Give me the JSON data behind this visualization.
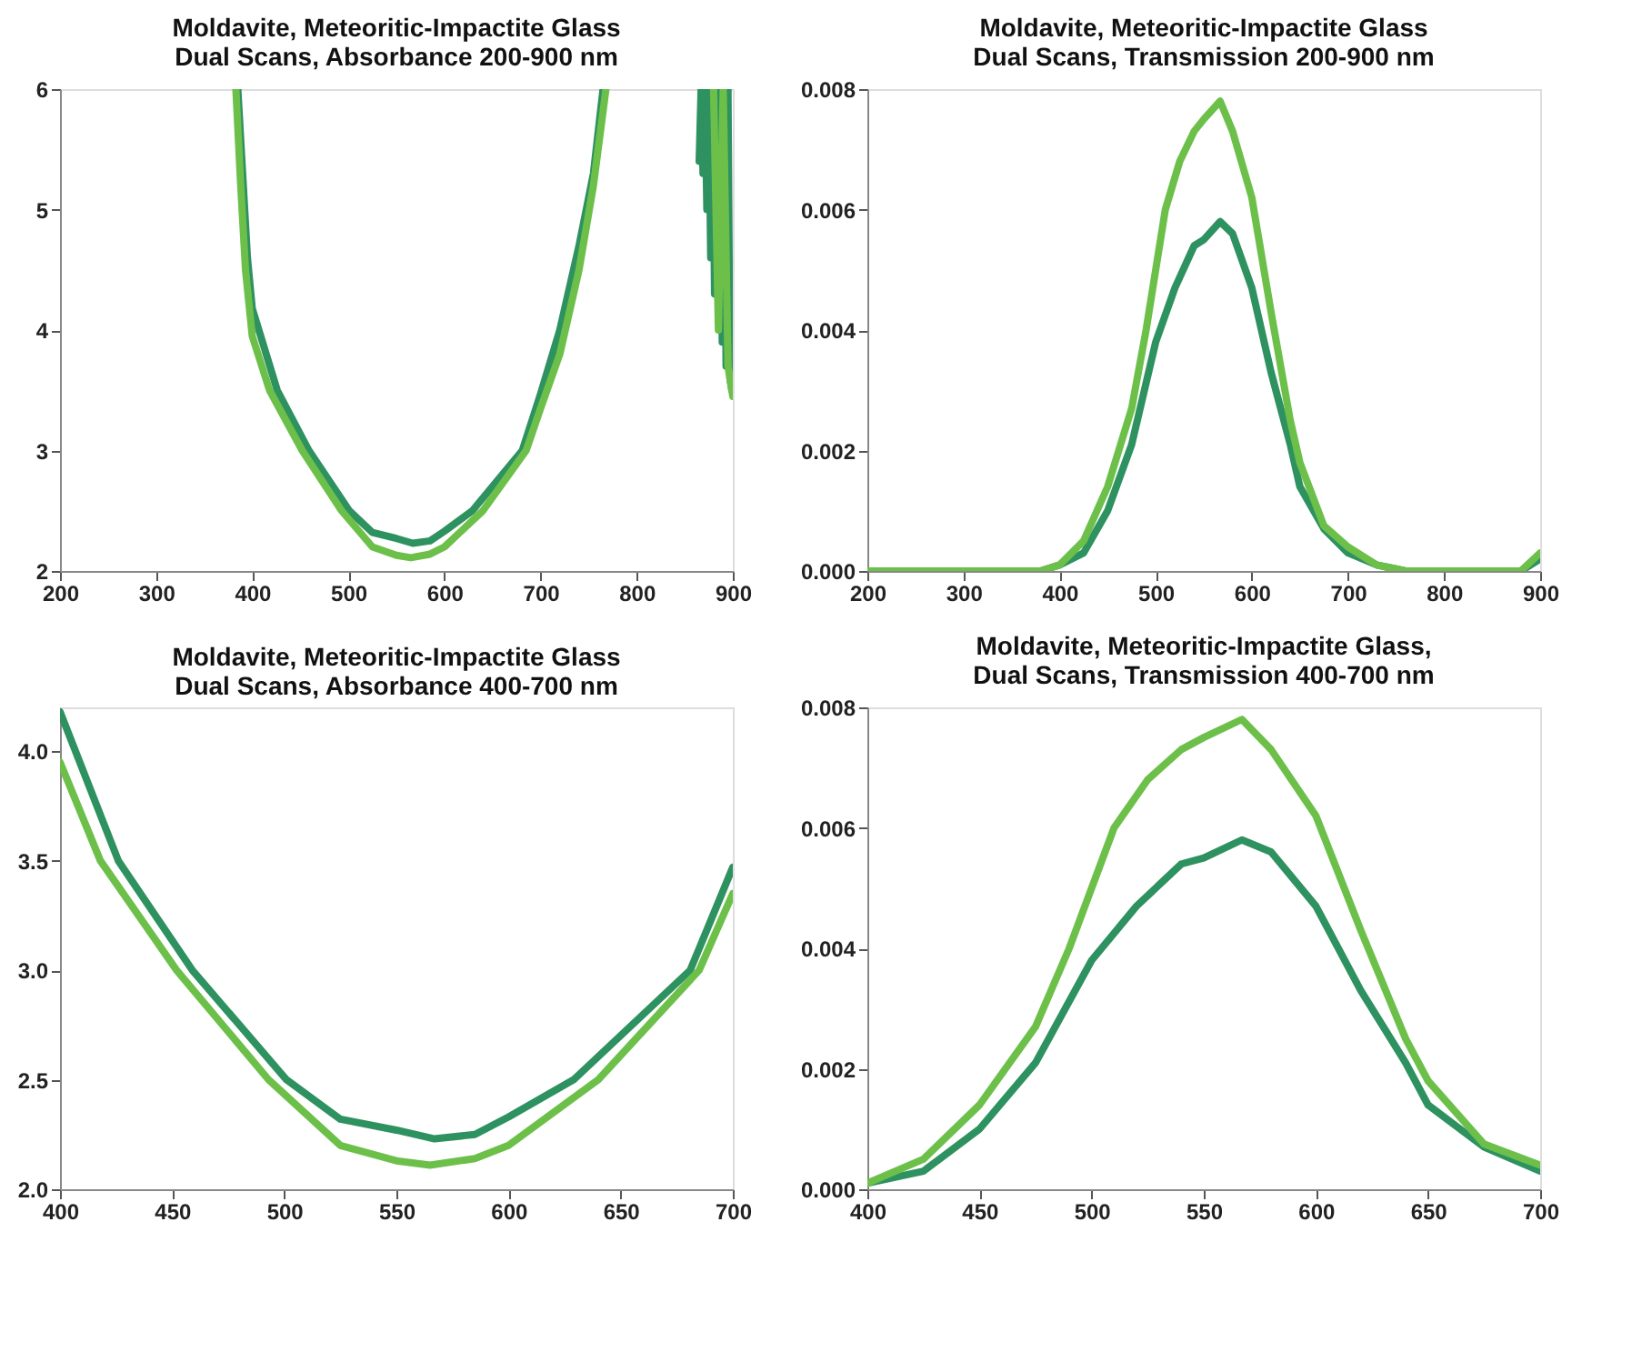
{
  "chart_data": [
    {
      "type": "line",
      "title": "Moldavite, Meteoritic-Impactite Glass\nDual Scans, Absorbance 200-900 nm",
      "xlim": [
        200,
        900
      ],
      "xticks": [
        200,
        300,
        400,
        500,
        600,
        700,
        800,
        900
      ],
      "ylim": [
        2,
        6
      ],
      "yticks": [
        2,
        3,
        4,
        5,
        6
      ],
      "grid": false,
      "line_style": "solid",
      "series": [
        {
          "color": "#2e9160",
          "x": [
            385,
            390,
            395,
            400,
            426,
            459,
            501,
            525,
            550,
            567,
            585,
            600,
            629,
            681,
            700,
            720,
            740,
            755,
            765,
            800,
            865,
            867,
            869,
            871,
            873,
            875,
            877,
            879,
            881,
            883,
            885,
            887,
            889,
            891,
            893,
            895,
            897,
            899
          ],
          "values": [
            6,
            5.3,
            4.6,
            4.18,
            3.5,
            3.0,
            2.5,
            2.32,
            2.27,
            2.23,
            2.25,
            2.33,
            2.5,
            3.0,
            3.47,
            4.0,
            4.7,
            5.3,
            6,
            null,
            5.4,
            6,
            5.3,
            6,
            5.0,
            6,
            4.6,
            6,
            4.3,
            6,
            4.1,
            6,
            3.9,
            6,
            3.7,
            6,
            3.6,
            3.5
          ]
        },
        {
          "color": "#6cc04a",
          "x": [
            383,
            388,
            393,
            400,
            418,
            452,
            493,
            525,
            550,
            565,
            585,
            600,
            640,
            685,
            700,
            720,
            740,
            755,
            768,
            800,
            880,
            885,
            890,
            895,
            900
          ],
          "values": [
            6,
            5.2,
            4.5,
            3.95,
            3.5,
            3.0,
            2.5,
            2.2,
            2.13,
            2.11,
            2.14,
            2.2,
            2.5,
            3.0,
            3.35,
            3.8,
            4.5,
            5.2,
            6,
            null,
            6,
            4.0,
            6,
            3.7,
            3.45
          ]
        }
      ]
    },
    {
      "type": "line",
      "title": "Moldavite, Meteoritic-Impactite Glass\nDual Scans, Transmission 200-900 nm",
      "xlim": [
        200,
        900
      ],
      "xticks": [
        200,
        300,
        400,
        500,
        600,
        700,
        800,
        900
      ],
      "ylim": [
        0,
        0.008
      ],
      "yticks": [
        {
          "value": 0,
          "label": "0.000"
        },
        {
          "value": 0.002,
          "label": "0.002"
        },
        {
          "value": 0.004,
          "label": "0.004"
        },
        {
          "value": 0.006,
          "label": "0.006"
        },
        {
          "value": 0.008,
          "label": "0.008"
        }
      ],
      "grid": false,
      "line_style": "solid",
      "series": [
        {
          "color": "#2e9160",
          "x": [
            200,
            380,
            400,
            425,
            450,
            475,
            500,
            520,
            540,
            550,
            567,
            580,
            600,
            620,
            640,
            650,
            675,
            700,
            730,
            760,
            880,
            900
          ],
          "values": [
            0,
            0,
            0.0001,
            0.0003,
            0.001,
            0.0021,
            0.0038,
            0.0047,
            0.0054,
            0.0055,
            0.0058,
            0.0056,
            0.0047,
            0.0033,
            0.0021,
            0.0014,
            0.0007,
            0.0003,
            0.0001,
            0,
            0,
            0.0002
          ]
        },
        {
          "color": "#6cc04a",
          "x": [
            200,
            380,
            400,
            425,
            450,
            475,
            490,
            510,
            525,
            540,
            550,
            567,
            580,
            600,
            620,
            640,
            650,
            675,
            700,
            730,
            760,
            880,
            900
          ],
          "values": [
            0,
            0,
            0.0001,
            0.0005,
            0.0014,
            0.0027,
            0.004,
            0.006,
            0.0068,
            0.0073,
            0.0075,
            0.0078,
            0.0073,
            0.0062,
            0.0043,
            0.0025,
            0.0018,
            0.00075,
            0.0004,
            0.0001,
            0,
            0,
            0.0003
          ]
        }
      ]
    },
    {
      "type": "line",
      "title": "Moldavite, Meteoritic-Impactite Glass\nDual Scans, Absorbance 400-700 nm",
      "xlim": [
        400,
        700
      ],
      "xticks": [
        400,
        450,
        500,
        550,
        600,
        650,
        700
      ],
      "ylim": [
        2,
        4.2
      ],
      "yticks": [
        {
          "value": 2,
          "label": "2.0"
        },
        {
          "value": 2.5,
          "label": "2.5"
        },
        {
          "value": 3,
          "label": "3.0"
        },
        {
          "value": 3.5,
          "label": "3.5"
        },
        {
          "value": 4,
          "label": "4.0"
        }
      ],
      "grid": false,
      "line_style": "solid",
      "series": [
        {
          "color": "#2e9160",
          "x": [
            400,
            426,
            459,
            501,
            525,
            550,
            567,
            585,
            600,
            629,
            681,
            700
          ],
          "values": [
            4.18,
            3.5,
            3.0,
            2.5,
            2.32,
            2.27,
            2.23,
            2.25,
            2.33,
            2.5,
            3.0,
            3.47
          ]
        },
        {
          "color": "#6cc04a",
          "x": [
            400,
            418,
            452,
            493,
            525,
            550,
            565,
            585,
            600,
            640,
            685,
            700
          ],
          "values": [
            3.95,
            3.5,
            3.0,
            2.5,
            2.2,
            2.13,
            2.11,
            2.14,
            2.2,
            2.5,
            3.0,
            3.35
          ]
        }
      ]
    },
    {
      "type": "line",
      "title": "Moldavite, Meteoritic-Impactite Glass,\nDual Scans, Transmission 400-700 nm",
      "xlim": [
        400,
        700
      ],
      "xticks": [
        400,
        450,
        500,
        550,
        600,
        650,
        700
      ],
      "ylim": [
        0,
        0.008
      ],
      "yticks": [
        {
          "value": 0,
          "label": "0.000"
        },
        {
          "value": 0.002,
          "label": "0.002"
        },
        {
          "value": 0.004,
          "label": "0.004"
        },
        {
          "value": 0.006,
          "label": "0.006"
        },
        {
          "value": 0.008,
          "label": "0.008"
        }
      ],
      "grid": false,
      "line_style": "solid",
      "series": [
        {
          "color": "#2e9160",
          "x": [
            400,
            425,
            450,
            475,
            500,
            520,
            540,
            550,
            567,
            580,
            600,
            620,
            640,
            650,
            675,
            700
          ],
          "values": [
            0.0001,
            0.0003,
            0.001,
            0.0021,
            0.0038,
            0.0047,
            0.0054,
            0.0055,
            0.0058,
            0.0056,
            0.0047,
            0.0033,
            0.0021,
            0.0014,
            0.0007,
            0.0003
          ]
        },
        {
          "color": "#6cc04a",
          "x": [
            400,
            425,
            450,
            475,
            490,
            510,
            525,
            540,
            550,
            567,
            580,
            600,
            620,
            640,
            650,
            675,
            700
          ],
          "values": [
            0.0001,
            0.0005,
            0.0014,
            0.0027,
            0.004,
            0.006,
            0.0068,
            0.0073,
            0.0075,
            0.0078,
            0.0073,
            0.0062,
            0.0043,
            0.0025,
            0.0018,
            0.00075,
            0.0004
          ]
        }
      ]
    }
  ]
}
